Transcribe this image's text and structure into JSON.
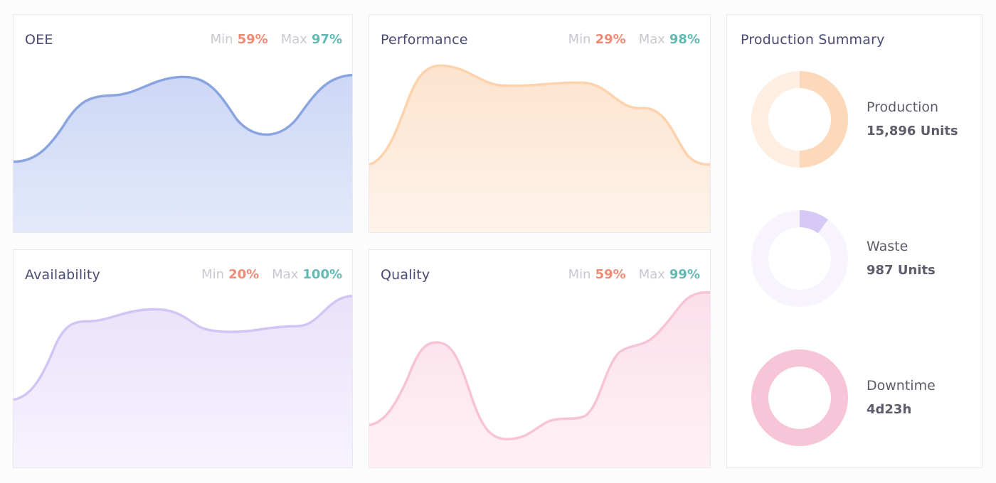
{
  "cards": [
    {
      "key": "oee",
      "title": "OEE",
      "min_label": "Min",
      "min_value": "59%",
      "max_label": "Max",
      "max_value": "97%",
      "color": "#8aa4df",
      "fill_top": "#ccd7f5",
      "fill_bottom": "#e4e9fb"
    },
    {
      "key": "performance",
      "title": "Performance",
      "min_label": "Min",
      "min_value": "29%",
      "max_label": "Max",
      "max_value": "98%",
      "color": "#fcd3ad",
      "fill_top": "#fde3ce",
      "fill_bottom": "#fff3ea"
    },
    {
      "key": "availability",
      "title": "Availability",
      "min_label": "Min",
      "min_value": "20%",
      "max_label": "Max",
      "max_value": "100%",
      "color": "#d3c5f3",
      "fill_top": "#e9e1fa",
      "fill_bottom": "#f7f3fe"
    },
    {
      "key": "quality",
      "title": "Quality",
      "min_label": "Min",
      "min_value": "59%",
      "max_label": "Max",
      "max_value": "99%",
      "color": "#f7c4d7",
      "fill_top": "#fbdfea",
      "fill_bottom": "#fff1f6"
    }
  ],
  "summary": {
    "title": "Production Summary",
    "items": [
      {
        "label": "Production",
        "value": "15,896 Units",
        "fraction": 0.5,
        "ring_color": "#fdd9bb",
        "track_color": "#ffeee2"
      },
      {
        "label": "Waste",
        "value": "987 Units",
        "fraction": 0.1,
        "ring_color": "#d6c9f5",
        "track_color": "#f8f4fe"
      },
      {
        "label": "Downtime",
        "value": "4d23h",
        "fraction": 1.0,
        "ring_color": "#f6c5d8",
        "track_color": "#fbe4ee"
      }
    ]
  }
}
